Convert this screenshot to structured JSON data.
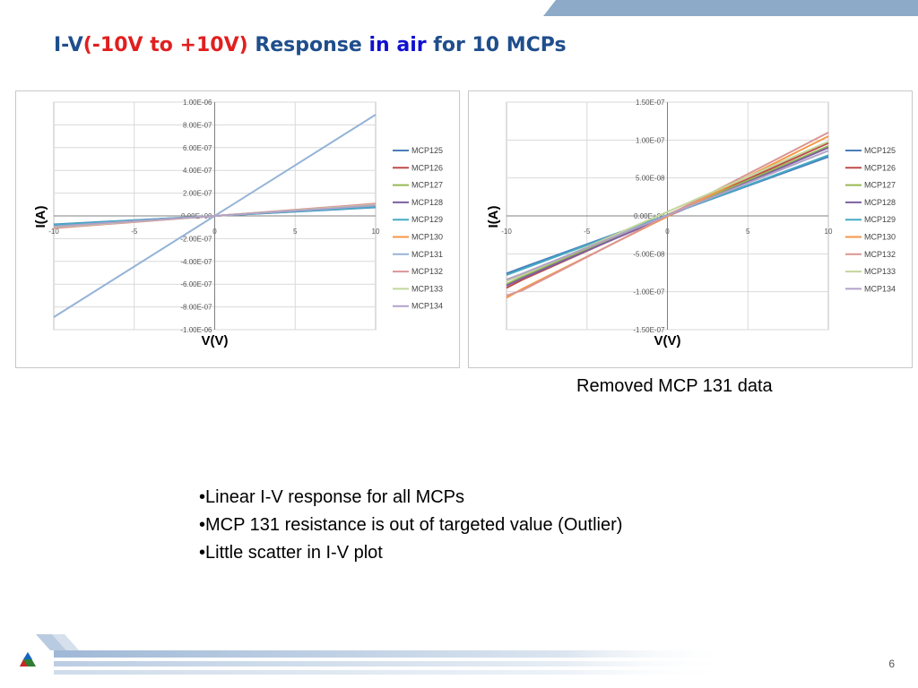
{
  "title": {
    "part1": "I-V",
    "part2": "(-10V to +10V)",
    "part3": " Response ",
    "part4": "in air",
    "part5": " for 10 MCPs"
  },
  "chart_data": [
    {
      "type": "line",
      "ylabel": "I(A)",
      "xlabel": "V(V)",
      "xlim": [
        -10,
        10
      ],
      "ylim": [
        -1e-06,
        1e-06
      ],
      "x_ticks": [
        "-10",
        "-5",
        "0",
        "5",
        "10"
      ],
      "y_ticks": [
        "1.00E-06",
        "8.00E-07",
        "6.00E-07",
        "4.00E-07",
        "2.00E-07",
        "0.00E+00",
        "-2.00E-07",
        "-4.00E-07",
        "-6.00E-07",
        "-8.00E-07",
        "-1.00E-06"
      ],
      "grid": true,
      "legend_position": "right",
      "series": [
        {
          "name": "MCP125",
          "color": "#4a7ebb",
          "x": [
            -10,
            10
          ],
          "y": [
            -7.5e-08,
            7.5e-08
          ]
        },
        {
          "name": "MCP126",
          "color": "#be4b48",
          "x": [
            -10,
            10
          ],
          "y": [
            -9.5e-08,
            9.5e-08
          ]
        },
        {
          "name": "MCP127",
          "color": "#98b954",
          "x": [
            -10,
            10
          ],
          "y": [
            -9e-08,
            9e-08
          ]
        },
        {
          "name": "MCP128",
          "color": "#7d60a0",
          "x": [
            -10,
            10
          ],
          "y": [
            -8.8e-08,
            8.8e-08
          ]
        },
        {
          "name": "MCP129",
          "color": "#46aac5",
          "x": [
            -10,
            10
          ],
          "y": [
            -7.8e-08,
            7.8e-08
          ]
        },
        {
          "name": "MCP130",
          "color": "#f79646",
          "x": [
            -10,
            10
          ],
          "y": [
            -1e-07,
            1e-07
          ]
        },
        {
          "name": "MCP131",
          "color": "#95b3d7",
          "x": [
            -10,
            10
          ],
          "y": [
            -8.9e-07,
            8.9e-07
          ]
        },
        {
          "name": "MCP132",
          "color": "#d99694",
          "x": [
            -10,
            10
          ],
          "y": [
            -1.08e-07,
            1.08e-07
          ]
        },
        {
          "name": "MCP133",
          "color": "#c3d69b",
          "x": [
            -10,
            10
          ],
          "y": [
            -9.8e-08,
            9.8e-08
          ]
        },
        {
          "name": "MCP134",
          "color": "#b2a2c7",
          "x": [
            -10,
            10
          ],
          "y": [
            -9.2e-08,
            9.2e-08
          ]
        }
      ]
    },
    {
      "type": "line",
      "ylabel": "I(A)",
      "xlabel": "V(V)",
      "xlim": [
        -10,
        10
      ],
      "ylim": [
        -1.5e-07,
        1.5e-07
      ],
      "x_ticks": [
        "-10",
        "-5",
        "0",
        "5",
        "10"
      ],
      "y_ticks": [
        "1.50E-07",
        "1.00E-07",
        "5.00E-08",
        "0.00E+00",
        "-5.00E-08",
        "-1.00E-07",
        "-1.50E-07"
      ],
      "grid": true,
      "legend_position": "right",
      "series": [
        {
          "name": "MCP125",
          "color": "#4a7ebb",
          "x": [
            -10,
            -9,
            10
          ],
          "y": [
            -7.6e-08,
            -6.8e-08,
            7.8e-08
          ]
        },
        {
          "name": "MCP126",
          "color": "#be4b48",
          "x": [
            -10,
            -9,
            10
          ],
          "y": [
            -9.5e-08,
            -8.4e-08,
            9.6e-08
          ]
        },
        {
          "name": "MCP127",
          "color": "#98b954",
          "x": [
            -10,
            -9,
            10
          ],
          "y": [
            -9e-08,
            -8e-08,
            9.2e-08
          ]
        },
        {
          "name": "MCP128",
          "color": "#7d60a0",
          "x": [
            -10,
            -9,
            10
          ],
          "y": [
            -9.2e-08,
            -8.2e-08,
            9e-08
          ]
        },
        {
          "name": "MCP129",
          "color": "#46aac5",
          "x": [
            -10,
            -9,
            10
          ],
          "y": [
            -7.8e-08,
            -7e-08,
            8e-08
          ]
        },
        {
          "name": "MCP130",
          "color": "#f79646",
          "x": [
            -10,
            -9,
            10
          ],
          "y": [
            -1.08e-07,
            -9.6e-08,
            1.05e-07
          ]
        },
        {
          "name": "MCP132",
          "color": "#d99694",
          "x": [
            -10,
            -9,
            10
          ],
          "y": [
            -1.05e-07,
            -9.8e-08,
            1.1e-07
          ]
        },
        {
          "name": "MCP133",
          "color": "#c3d69b",
          "x": [
            -10,
            -9,
            10
          ],
          "y": [
            -8.6e-08,
            -7.8e-08,
            9.8e-08
          ]
        },
        {
          "name": "MCP134",
          "color": "#b2a2c7",
          "x": [
            -10,
            -9,
            10
          ],
          "y": [
            -8.4e-08,
            -7.6e-08,
            8.6e-08
          ]
        }
      ]
    }
  ],
  "caption": "Removed MCP 131 data",
  "bullets": [
    "•Linear I-V response for all MCPs",
    "•MCP 131 resistance is out of targeted value (Outlier)",
    "•Little scatter in I-V plot"
  ],
  "page_number": "6",
  "colors": {
    "title_blue": "#1f4e8c",
    "title_red": "#e02020",
    "title_highlight": "#1010d0",
    "band": "#8eaac9"
  }
}
